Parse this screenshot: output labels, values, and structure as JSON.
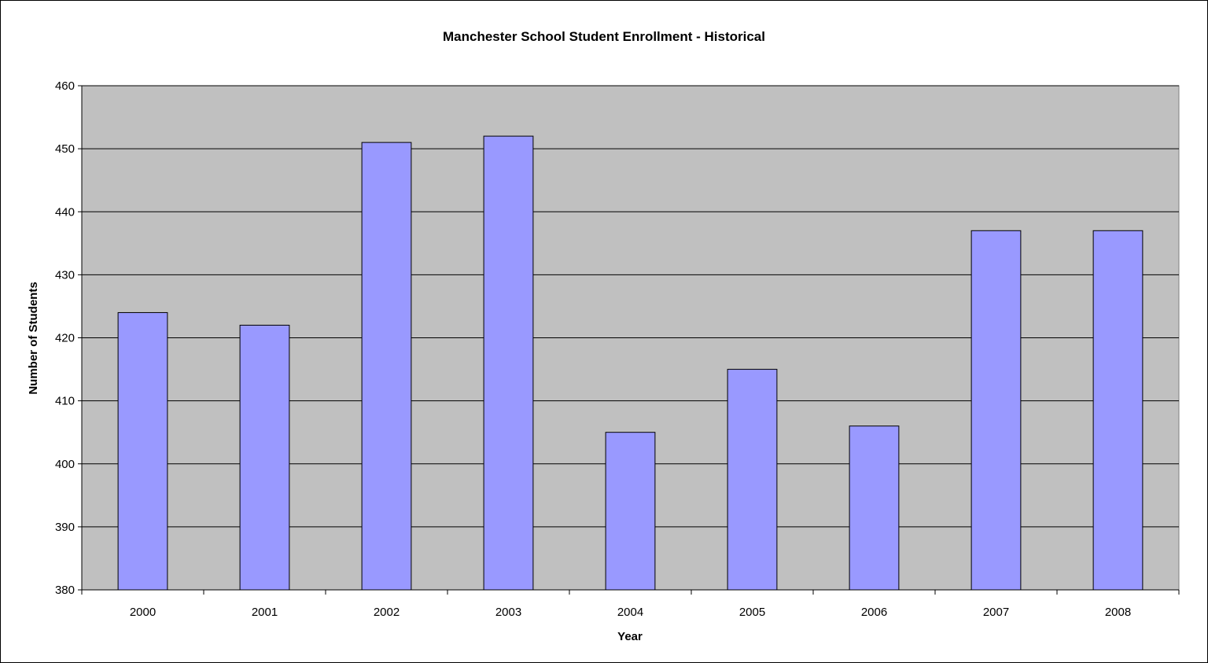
{
  "chart_data": {
    "type": "bar",
    "title": "Manchester School Student Enrollment - Historical",
    "xlabel": "Year",
    "ylabel": "Number of Students",
    "categories": [
      "2000",
      "2001",
      "2002",
      "2003",
      "2004",
      "2005",
      "2006",
      "2007",
      "2008"
    ],
    "values": [
      424,
      422,
      451,
      452,
      405,
      415,
      406,
      437,
      437
    ],
    "ylim": [
      380,
      460
    ],
    "yticks": [
      380,
      390,
      400,
      410,
      420,
      430,
      440,
      450,
      460
    ],
    "grid": true,
    "legend": "none",
    "colors": {
      "plot_background": "#c0c0c0",
      "bar_fill": "#9999ff",
      "bar_stroke": "#000000",
      "grid": "#000000"
    }
  }
}
